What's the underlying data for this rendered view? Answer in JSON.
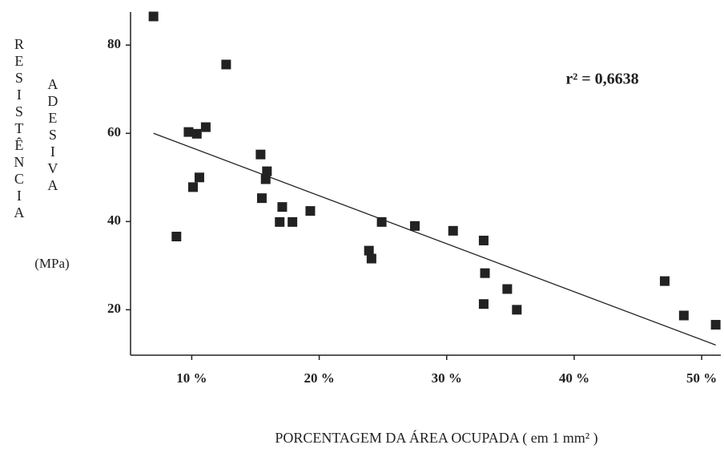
{
  "chart_data": {
    "type": "scatter",
    "ylabel": [
      "RESISTÊNCIA",
      "ADESIVA",
      "(MPa)"
    ],
    "xlabel": "PORCENTAGEM DA ÁREA OCUPADA ( em 1 mm² )",
    "annotation": "r² = 0,6638",
    "color": "#222222",
    "x": [
      7.0,
      12.7,
      9.75,
      10.4,
      11.1,
      10.6,
      10.1,
      8.8,
      15.4,
      15.9,
      15.8,
      15.5,
      17.1,
      16.9,
      17.9,
      19.3,
      24.9,
      23.9,
      24.1,
      27.5,
      30.5,
      32.9,
      33.0,
      32.9,
      34.75,
      35.5,
      47.1,
      48.6,
      51.1
    ],
    "values": [
      86.5,
      75.6,
      60.3,
      59.9,
      61.4,
      50.0,
      47.8,
      36.6,
      55.2,
      51.4,
      49.6,
      45.3,
      43.3,
      39.9,
      39.9,
      42.4,
      39.9,
      33.4,
      31.6,
      39.0,
      37.9,
      35.7,
      28.3,
      21.3,
      24.7,
      20.0,
      26.5,
      18.7,
      16.6
    ],
    "trendline": {
      "x": [
        7.0,
        51.1
      ],
      "y": [
        60.0,
        12.0
      ]
    },
    "xlim": [
      5.2,
      51.5
    ],
    "ylim": [
      9.7,
      87.5
    ],
    "xticks": [
      {
        "value": 10,
        "label": "10 %"
      },
      {
        "value": 20,
        "label": "20 %"
      },
      {
        "value": 30,
        "label": "30 %"
      },
      {
        "value": 40,
        "label": "40 %"
      },
      {
        "value": 50,
        "label": "50 %"
      }
    ],
    "yticks": [
      20,
      40,
      60,
      80
    ]
  }
}
